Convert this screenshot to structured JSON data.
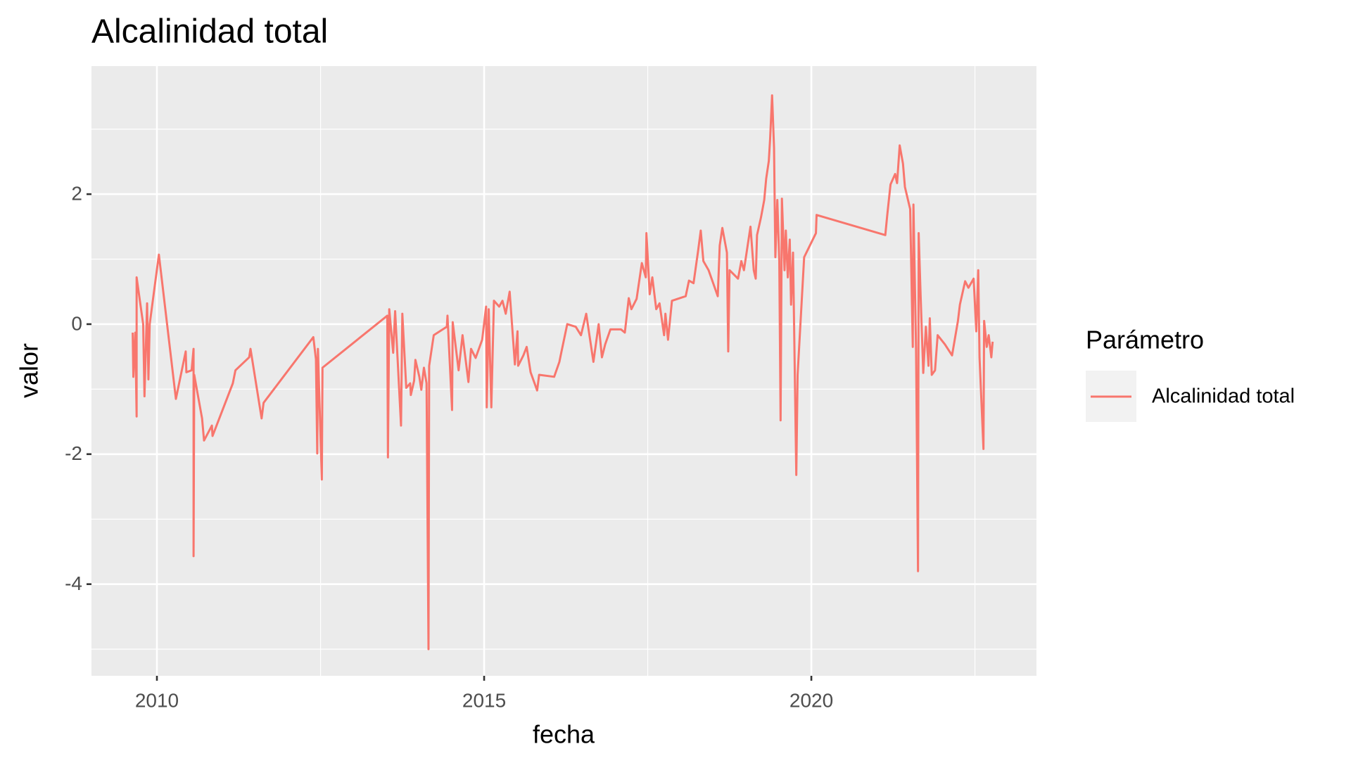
{
  "chart_data": {
    "type": "line",
    "title": "Alcalinidad total",
    "xlabel": "fecha",
    "ylabel": "valor",
    "x": [
      2009.63,
      2009.64,
      2009.67,
      2009.69,
      2009.69,
      2009.79,
      2009.81,
      2009.85,
      2009.87,
      2009.89,
      2010.03,
      2010.29,
      2010.44,
      2010.45,
      2010.53,
      2010.56,
      2010.56,
      2010.57,
      2010.69,
      2010.72,
      2010.84,
      2010.85,
      2011.16,
      2011.2,
      2011.41,
      2011.43,
      2011.6,
      2011.63,
      2012.39,
      2012.43,
      2012.45,
      2012.46,
      2012.52,
      2012.53,
      2013.52,
      2013.53,
      2013.55,
      2013.61,
      2013.64,
      2013.73,
      2013.75,
      2013.81,
      2013.87,
      2013.88,
      2013.93,
      2013.95,
      2014.01,
      2014.04,
      2014.08,
      2014.12,
      2014.15,
      2014.16,
      2014.23,
      2014.43,
      2014.44,
      2014.51,
      2014.52,
      2014.61,
      2014.67,
      2014.76,
      2014.8,
      2014.87,
      2014.97,
      2015.03,
      2015.04,
      2015.07,
      2015.11,
      2015.15,
      2015.23,
      2015.28,
      2015.33,
      2015.39,
      2015.47,
      2015.51,
      2015.52,
      2015.6,
      2015.65,
      2015.71,
      2015.81,
      2015.84,
      2016.07,
      2016.15,
      2016.17,
      2016.27,
      2016.4,
      2016.48,
      2016.56,
      2016.67,
      2016.75,
      2016.8,
      2016.85,
      2016.93,
      2017.09,
      2017.15,
      2017.21,
      2017.25,
      2017.33,
      2017.41,
      2017.47,
      2017.48,
      2017.53,
      2017.57,
      2017.63,
      2017.68,
      2017.75,
      2017.77,
      2017.81,
      2017.87,
      2018.08,
      2018.13,
      2018.2,
      2018.27,
      2018.31,
      2018.35,
      2018.43,
      2018.57,
      2018.6,
      2018.64,
      2018.71,
      2018.73,
      2018.75,
      2018.88,
      2018.93,
      2018.97,
      2019.07,
      2019.12,
      2019.15,
      2019.17,
      2019.23,
      2019.28,
      2019.31,
      2019.35,
      2019.37,
      2019.4,
      2019.43,
      2019.45,
      2019.48,
      2019.51,
      2019.53,
      2019.55,
      2019.59,
      2019.61,
      2019.64,
      2019.67,
      2019.69,
      2019.72,
      2019.77,
      2019.79,
      2019.89,
      2020.07,
      2020.08,
      2021.13,
      2021.16,
      2021.21,
      2021.28,
      2021.31,
      2021.35,
      2021.4,
      2021.43,
      2021.51,
      2021.55,
      2021.56,
      2021.6,
      2021.63,
      2021.64,
      2021.67,
      2021.71,
      2021.75,
      2021.79,
      2021.81,
      2021.84,
      2021.89,
      2021.93,
      2022.04,
      2022.15,
      2022.24,
      2022.27,
      2022.35,
      2022.4,
      2022.48,
      2022.52,
      2022.55,
      2022.57,
      2022.63,
      2022.64,
      2022.68,
      2022.71,
      2022.75,
      2022.77
    ],
    "series": [
      {
        "name": "Alcalinidad total",
        "color": "#f8766d",
        "values": [
          -0.13,
          -0.81,
          -0.13,
          -1.42,
          0.72,
          0,
          -1.11,
          0.32,
          -0.85,
          0,
          1.07,
          -1.15,
          -0.42,
          -0.74,
          -0.71,
          -0.38,
          -3.57,
          -0.78,
          -1.45,
          -1.79,
          -1.56,
          -1.72,
          -0.91,
          -0.71,
          -0.51,
          -0.38,
          -1.45,
          -1.21,
          -0.2,
          -0.54,
          -1.99,
          -0.38,
          -2.39,
          -0.67,
          0.13,
          -2.05,
          0.23,
          -0.44,
          0.2,
          -1.56,
          0.16,
          -0.98,
          -0.91,
          -1.09,
          -0.87,
          -0.55,
          -0.81,
          -1.01,
          -0.67,
          -0.91,
          -5.0,
          -0.64,
          -0.17,
          -0.04,
          0.13,
          -1.32,
          0.03,
          -0.71,
          -0.17,
          -0.89,
          -0.38,
          -0.52,
          -0.24,
          0.27,
          -1.28,
          0.23,
          -1.28,
          0.36,
          0.27,
          0.36,
          0.16,
          0.5,
          -0.62,
          -0.11,
          -0.64,
          -0.48,
          -0.35,
          -0.74,
          -1.02,
          -0.78,
          -0.81,
          -0.58,
          -0.48,
          0,
          -0.04,
          -0.17,
          0.16,
          -0.58,
          0,
          -0.51,
          -0.31,
          -0.08,
          -0.08,
          -0.13,
          0.4,
          0.23,
          0.39,
          0.94,
          0.72,
          1.4,
          0.46,
          0.72,
          0.23,
          0.32,
          -0.17,
          0.16,
          -0.24,
          0.36,
          0.43,
          0.67,
          0.63,
          1.13,
          1.44,
          0.97,
          0.83,
          0.43,
          1.21,
          1.48,
          1.1,
          -0.42,
          0.83,
          0.7,
          0.97,
          0.83,
          1.5,
          0.83,
          0.7,
          1.37,
          1.64,
          1.91,
          2.24,
          2.51,
          2.85,
          3.52,
          2.71,
          1.03,
          1.91,
          0.97,
          -1.48,
          1.93,
          0.83,
          1.44,
          0.72,
          1.3,
          0.3,
          1.1,
          -2.32,
          -0.78,
          1.03,
          1.4,
          1.68,
          1.37,
          1.68,
          2.15,
          2.31,
          2.17,
          2.75,
          2.47,
          2.11,
          1.77,
          -0.35,
          1.84,
          -0.38,
          -3.8,
          1.4,
          0.43,
          -0.75,
          -0.04,
          -0.64,
          0.09,
          -0.78,
          -0.71,
          -0.17,
          -0.31,
          -0.48,
          0.05,
          0.3,
          0.66,
          0.56,
          0.7,
          -0.11,
          0.83,
          -0.51,
          -1.92,
          0.05,
          -0.35,
          -0.17,
          -0.51,
          -0.27
        ]
      }
    ],
    "xlim": [
      2009.0,
      2023.44
    ],
    "ylim": [
      -5.41,
      3.97
    ],
    "xticks": [
      2010,
      2015,
      2020
    ],
    "yticks": [
      -4,
      -2,
      0,
      2
    ],
    "xminor": [
      2012.5,
      2017.5,
      2022.5
    ],
    "yminor": [
      -5,
      -3,
      -1,
      1,
      3
    ],
    "grid": true,
    "legend": {
      "title": "Parámetro",
      "position": "right"
    }
  }
}
